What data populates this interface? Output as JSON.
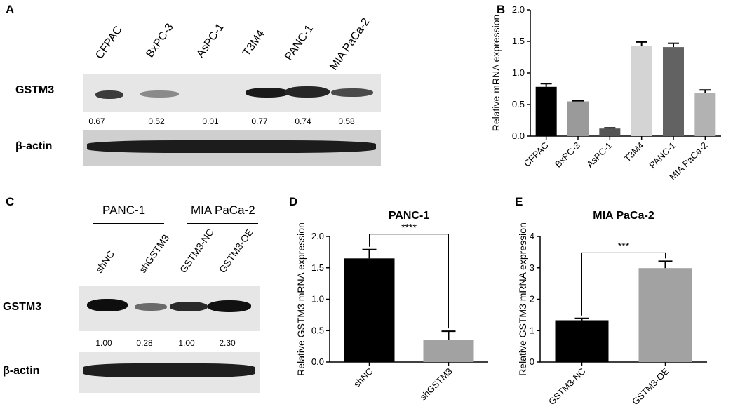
{
  "panels": {
    "a": {
      "letter": "A",
      "lanes": [
        "CFPAC",
        "BxPC-3",
        "AsPC-1",
        "T3M4",
        "PANC-1",
        "MIA PaCa-2"
      ],
      "row_labels": {
        "target": "GSTM3",
        "control": "β-actin"
      },
      "densities": [
        "0.67",
        "0.52",
        "0.01",
        "0.77",
        "0.74",
        "0.58"
      ]
    },
    "b": {
      "letter": "B"
    },
    "c": {
      "letter": "C",
      "groups": [
        "PANC-1",
        "MIA PaCa-2"
      ],
      "lanes": [
        "shNC",
        "shGSTM3",
        "GSTM3-NC",
        "GSTM3-OE"
      ],
      "row_labels": {
        "target": "GSTM3",
        "control": "β-actin"
      },
      "densities": [
        "1.00",
        "0.28",
        "1.00",
        "2.30"
      ]
    },
    "d": {
      "letter": "D"
    },
    "e": {
      "letter": "E"
    }
  },
  "chart_data": [
    {
      "id": "B",
      "type": "bar",
      "title": "",
      "categories": [
        "CFPAC",
        "BxPC-3",
        "AsPC-1",
        "T3M4",
        "PANC-1",
        "MIA PaCa-2"
      ],
      "values": [
        0.78,
        0.55,
        0.12,
        1.43,
        1.41,
        0.68
      ],
      "errors": [
        0.05,
        0.01,
        0.01,
        0.06,
        0.06,
        0.05
      ],
      "colors": [
        "#000000",
        "#9a9a9a",
        "#555555",
        "#d4d4d4",
        "#626262",
        "#b2b2b2"
      ],
      "ylabel": "Relative mRNA expression",
      "xlabel": "",
      "ylim": [
        0,
        2.0
      ],
      "yticks": [
        "0.0",
        "0.5",
        "1.0",
        "1.5",
        "2.0"
      ]
    },
    {
      "id": "D",
      "type": "bar",
      "title": "PANC-1",
      "categories": [
        "shNC",
        "shGSTM3"
      ],
      "values": [
        1.65,
        0.35
      ],
      "errors": [
        0.14,
        0.14
      ],
      "colors": [
        "#000000",
        "#a2a2a2"
      ],
      "ylabel": "Relative GSTM3 mRNA expression",
      "xlabel": "",
      "ylim": [
        0,
        2.0
      ],
      "yticks": [
        "0.0",
        "0.5",
        "1.0",
        "1.5",
        "2.0"
      ],
      "significance": "****"
    },
    {
      "id": "E",
      "type": "bar",
      "title": "MIA PaCa-2",
      "categories": [
        "GSTM3-NC",
        "GSTM3-OE"
      ],
      "values": [
        1.33,
        2.99
      ],
      "errors": [
        0.06,
        0.22
      ],
      "colors": [
        "#000000",
        "#a2a2a2"
      ],
      "ylabel": "Relative GSTM3 mRNA expression",
      "xlabel": "",
      "ylim": [
        0,
        4
      ],
      "yticks": [
        "0",
        "1",
        "2",
        "3",
        "4"
      ],
      "significance": "***"
    }
  ]
}
